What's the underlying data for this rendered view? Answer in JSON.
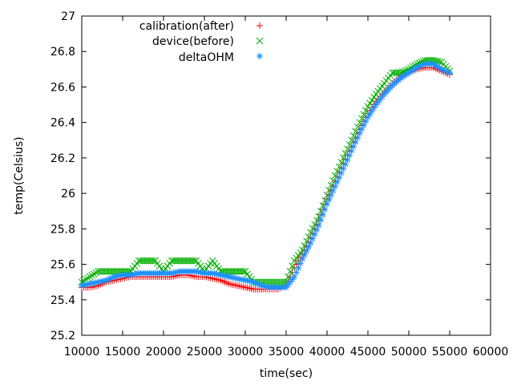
{
  "chart_data": {
    "type": "scatter",
    "title": "",
    "xlabel": "time(sec)",
    "ylabel": "temp(Celsius)",
    "xlim": [
      10000,
      60000
    ],
    "ylim": [
      25.2,
      27
    ],
    "xticks": [
      "10000",
      "15000",
      "20000",
      "25000",
      "30000",
      "35000",
      "40000",
      "45000",
      "50000",
      "55000",
      "60000"
    ],
    "yticks": [
      "25.2",
      "25.4",
      "25.6",
      "25.8",
      "26",
      "26.2",
      "26.4",
      "26.6",
      "26.8",
      "27"
    ],
    "grid": false,
    "legend_position": "top-right",
    "series": [
      {
        "name": "calibration(after)",
        "marker": "plus",
        "color": "#ff0000",
        "x": [
          10000,
          11000,
          12000,
          13000,
          14000,
          15000,
          16000,
          17000,
          18000,
          19000,
          20000,
          21000,
          22000,
          23000,
          24000,
          25000,
          26000,
          27000,
          28000,
          29000,
          30000,
          31000,
          32000,
          33000,
          34000,
          35000,
          36000,
          37000,
          38000,
          39000,
          40000,
          41000,
          42000,
          43000,
          44000,
          45000,
          46000,
          47000,
          48000,
          49000,
          50000,
          51000,
          52000,
          53000,
          54000,
          55000
        ],
        "y": [
          25.47,
          25.47,
          25.48,
          25.5,
          25.51,
          25.52,
          25.53,
          25.53,
          25.53,
          25.53,
          25.53,
          25.53,
          25.54,
          25.54,
          25.53,
          25.53,
          25.52,
          25.51,
          25.49,
          25.48,
          25.47,
          25.46,
          25.46,
          25.46,
          25.46,
          25.48,
          25.58,
          25.66,
          25.75,
          25.85,
          25.97,
          26.07,
          26.17,
          26.26,
          26.36,
          26.45,
          26.52,
          26.57,
          26.62,
          26.66,
          26.68,
          26.7,
          26.71,
          26.71,
          26.69,
          26.67
        ]
      },
      {
        "name": "device(before)",
        "marker": "cross",
        "color": "#00b000",
        "x": [
          10000,
          11000,
          12000,
          13000,
          14000,
          15000,
          16000,
          17000,
          18000,
          19000,
          20000,
          21000,
          22000,
          23000,
          24000,
          25000,
          26000,
          27000,
          28000,
          29000,
          30000,
          31000,
          32000,
          33000,
          34000,
          35000,
          36000,
          37000,
          38000,
          39000,
          40000,
          41000,
          42000,
          43000,
          44000,
          45000,
          46000,
          47000,
          48000,
          49000,
          50000,
          51000,
          52000,
          53000,
          54000,
          55000
        ],
        "y": [
          25.5,
          25.53,
          25.56,
          25.56,
          25.56,
          25.56,
          25.56,
          25.62,
          25.62,
          25.62,
          25.56,
          25.62,
          25.62,
          25.62,
          25.62,
          25.56,
          25.62,
          25.56,
          25.56,
          25.56,
          25.56,
          25.5,
          25.5,
          25.5,
          25.5,
          25.5,
          25.62,
          25.68,
          25.78,
          25.87,
          25.99,
          26.1,
          26.2,
          26.3,
          26.4,
          26.49,
          26.56,
          26.62,
          26.68,
          26.68,
          26.7,
          26.73,
          26.75,
          26.75,
          26.74,
          26.69
        ]
      },
      {
        "name": "deltaOHM",
        "marker": "star",
        "color": "#1e90ff",
        "x": [
          10000,
          11000,
          12000,
          13000,
          14000,
          15000,
          16000,
          17000,
          18000,
          19000,
          20000,
          21000,
          22000,
          23000,
          24000,
          25000,
          26000,
          27000,
          28000,
          29000,
          30000,
          31000,
          32000,
          33000,
          34000,
          35000,
          36000,
          37000,
          38000,
          39000,
          40000,
          41000,
          42000,
          43000,
          44000,
          45000,
          46000,
          47000,
          48000,
          49000,
          50000,
          51000,
          52000,
          53000,
          54000,
          55000
        ],
        "y": [
          25.48,
          25.49,
          25.5,
          25.51,
          25.53,
          25.54,
          25.54,
          25.55,
          25.55,
          25.55,
          25.55,
          25.55,
          25.56,
          25.56,
          25.56,
          25.55,
          25.55,
          25.54,
          25.53,
          25.52,
          25.51,
          25.5,
          25.48,
          25.47,
          25.47,
          25.47,
          25.53,
          25.63,
          25.72,
          25.82,
          25.94,
          26.04,
          26.14,
          26.24,
          26.34,
          26.43,
          26.5,
          26.56,
          26.61,
          26.65,
          26.68,
          26.71,
          26.73,
          26.73,
          26.7,
          26.68
        ]
      }
    ]
  }
}
